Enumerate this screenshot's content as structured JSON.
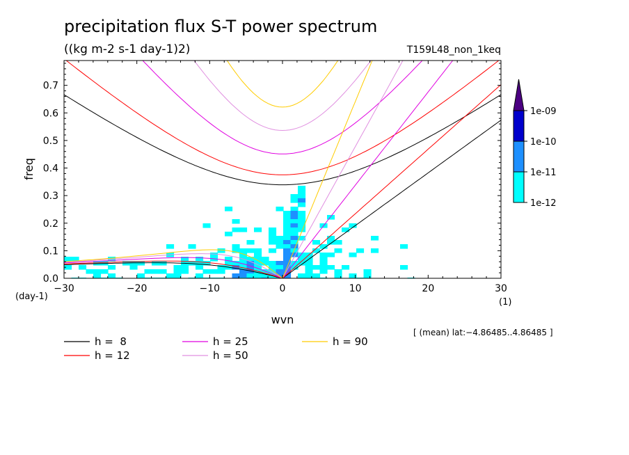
{
  "chart_data": {
    "type": "heatmap",
    "title": "precipitation flux S-T power spectrum",
    "units": "((kg m-2 s-1 day-1)2)",
    "run_name": "T159L48_non_1keq",
    "xlabel": "wvn",
    "xunit": "(1)",
    "ylabel": "freq",
    "yunit": "(day-1)",
    "xlim": [
      -30,
      30
    ],
    "ylim": [
      0,
      0.79
    ],
    "x_ticks": [
      -30,
      -20,
      -10,
      0,
      10,
      20,
      30
    ],
    "x_tick_labels": [
      "−30",
      "−20",
      "−10",
      "0",
      "10",
      "20",
      "30"
    ],
    "y_ticks": [
      0,
      0.1,
      0.2,
      0.3,
      0.4,
      0.5,
      0.6,
      0.7
    ],
    "y_tick_labels": [
      "0.0",
      "0.1",
      "0.2",
      "0.3",
      "0.4",
      "0.5",
      "0.6",
      "0.7"
    ],
    "region_note": "[ (mean) lat:−4.86485..4.86485 ]",
    "colorbar": {
      "levels": [
        "1e-12",
        "1e-11",
        "1e-10",
        "1e-09"
      ],
      "colors": [
        "#00ffff",
        "#1e90ff",
        "#0000cc",
        "#4b0082"
      ]
    },
    "dispersion_curves": [
      {
        "h": 8,
        "label": "h =  8",
        "color": "#000000"
      },
      {
        "h": 12,
        "label": "h = 12",
        "color": "#ff0000"
      },
      {
        "h": 25,
        "label": "h = 25",
        "color": "#e000e0"
      },
      {
        "h": 50,
        "label": "h = 50",
        "color": "#e08fe0"
      },
      {
        "h": 90,
        "label": "h = 90",
        "color": "#ffcc00"
      }
    ]
  }
}
